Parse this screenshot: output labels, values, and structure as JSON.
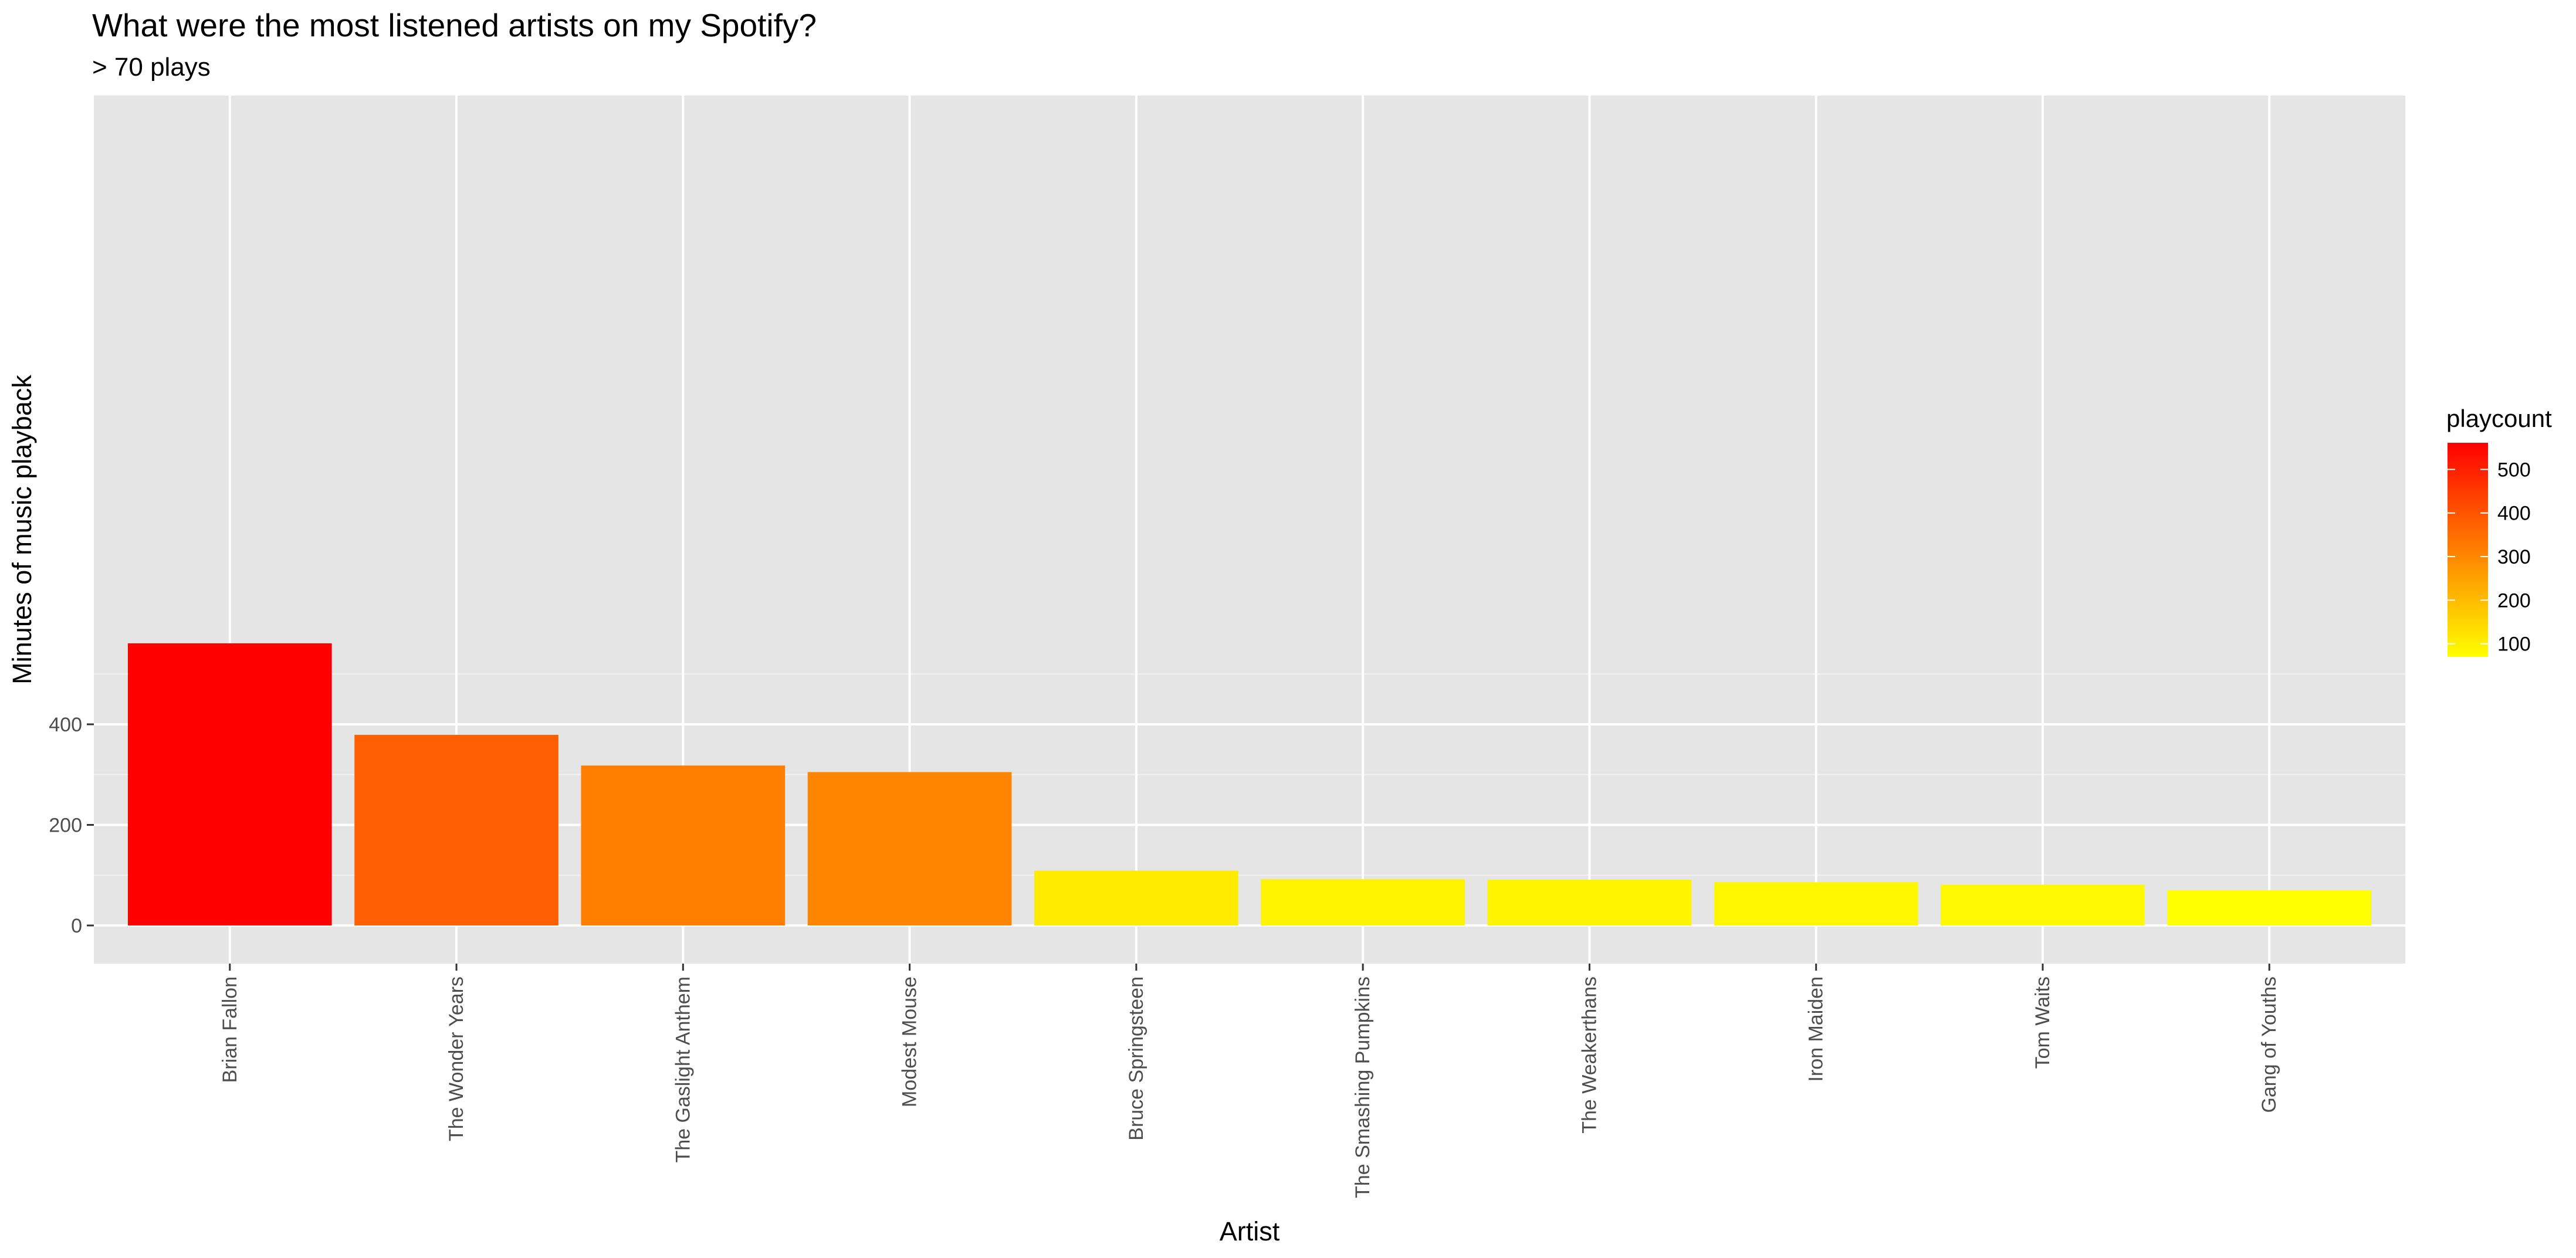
{
  "chart_data": {
    "type": "bar",
    "title": "What were the most listened artists on my Spotify?",
    "subtitle": "> 70 plays",
    "xlabel": "Artist",
    "ylabel": "Minutes of music playback",
    "categories": [
      "Brian Fallon",
      "The Wonder Years",
      "The Gaslight Anthem",
      "Modest Mouse",
      "Bruce Springsteen",
      "The Smashing Pumpkins",
      "The Weakerthans",
      "Iron Maiden",
      "Tom Waits",
      "Gang of Youths"
    ],
    "values": [
      561,
      379,
      318,
      305,
      109,
      92,
      91,
      86,
      81,
      70
    ],
    "playcount": [
      561,
      379,
      318,
      305,
      109,
      92,
      91,
      86,
      81,
      70
    ],
    "ylim": [
      0,
      586
    ],
    "yticks": [
      0,
      200,
      400
    ],
    "grid": true,
    "panel_background": "#e5e5e5",
    "legend": {
      "title": "playcount",
      "placement": "right",
      "ticks": [
        100,
        200,
        300,
        400,
        500
      ],
      "range": [
        70,
        561
      ],
      "color_low": "#ffff00",
      "color_high": "#ff0000"
    }
  }
}
